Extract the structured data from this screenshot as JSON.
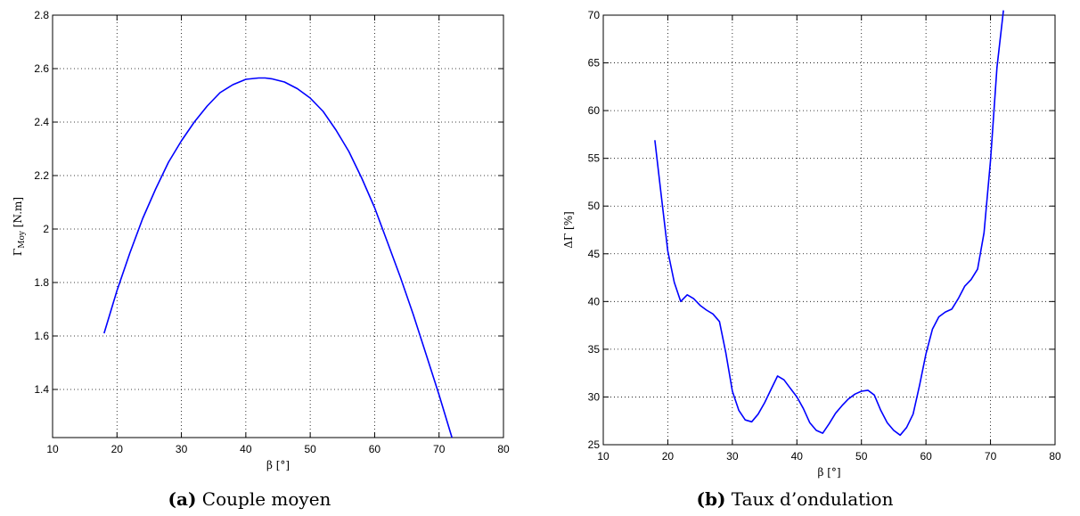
{
  "chart_data": [
    {
      "type": "line",
      "xlabel": "β [°]",
      "ylabel_main": "Γ",
      "ylabel_sub": "Moy",
      "ylabel_unit": " [N.m]",
      "xlim": [
        10,
        80
      ],
      "ylim": [
        1.22,
        2.8
      ],
      "xticks": [
        10,
        20,
        30,
        40,
        50,
        60,
        70,
        80
      ],
      "yticks": [
        1.4,
        1.6,
        1.8,
        2,
        2.2,
        2.4,
        2.6,
        2.8
      ],
      "ytick_labels": [
        "1.4",
        "1.6",
        "1.8",
        "2",
        "2.2",
        "2.4",
        "2.6",
        "2.8"
      ],
      "grid": true,
      "color": "#0000ff",
      "series": [
        {
          "x": [
            18,
            20,
            22,
            24,
            26,
            28,
            30,
            32,
            34,
            36,
            38,
            40,
            42,
            43,
            44,
            46,
            48,
            50,
            52,
            54,
            56,
            58,
            60,
            62,
            64,
            66,
            68,
            70,
            72
          ],
          "y": [
            1.61,
            1.77,
            1.91,
            2.04,
            2.15,
            2.25,
            2.33,
            2.4,
            2.46,
            2.51,
            2.54,
            2.56,
            2.565,
            2.565,
            2.562,
            2.55,
            2.525,
            2.49,
            2.44,
            2.37,
            2.29,
            2.19,
            2.08,
            1.95,
            1.82,
            1.68,
            1.53,
            1.38,
            1.22
          ]
        }
      ],
      "caption_tag": "(a)",
      "caption_text": "Couple moyen"
    },
    {
      "type": "line",
      "xlabel": "β [°]",
      "ylabel": "ΔΓ [%]",
      "xlim": [
        10,
        80
      ],
      "ylim": [
        25,
        70
      ],
      "xticks": [
        10,
        20,
        30,
        40,
        50,
        60,
        70,
        80
      ],
      "yticks": [
        25,
        30,
        35,
        40,
        45,
        50,
        55,
        60,
        65,
        70
      ],
      "grid": true,
      "color": "#0000ff",
      "series": [
        {
          "x": [
            18,
            19,
            20,
            21,
            22,
            23,
            24,
            25,
            26,
            27,
            28,
            29,
            30,
            31,
            32,
            33,
            34,
            35,
            36,
            37,
            38,
            39,
            40,
            41,
            42,
            43,
            44,
            45,
            46,
            47,
            48,
            49,
            50,
            51,
            52,
            53,
            54,
            55,
            56,
            57,
            58,
            59,
            60,
            61,
            62,
            63,
            64,
            65,
            66,
            67,
            68,
            69,
            70,
            71,
            72
          ],
          "y": [
            56.9,
            51,
            45.3,
            42,
            40,
            40.7,
            40.3,
            39.6,
            39.1,
            38.7,
            37.9,
            34.6,
            30.6,
            28.6,
            27.6,
            27.4,
            28.2,
            29.4,
            30.8,
            32.2,
            31.8,
            30.9,
            30,
            28.8,
            27.3,
            26.5,
            26.2,
            27.2,
            28.3,
            29.1,
            29.8,
            30.3,
            30.6,
            30.7,
            30.2,
            28.6,
            27.3,
            26.5,
            26,
            26.8,
            28.2,
            31.2,
            34.5,
            37.1,
            38.4,
            38.9,
            39.2,
            40.3,
            41.6,
            42.3,
            43.4,
            47.2,
            54.8,
            64.5,
            70.5
          ]
        }
      ],
      "caption_tag": "(b)",
      "caption_text": "Taux d’ondulation"
    }
  ]
}
